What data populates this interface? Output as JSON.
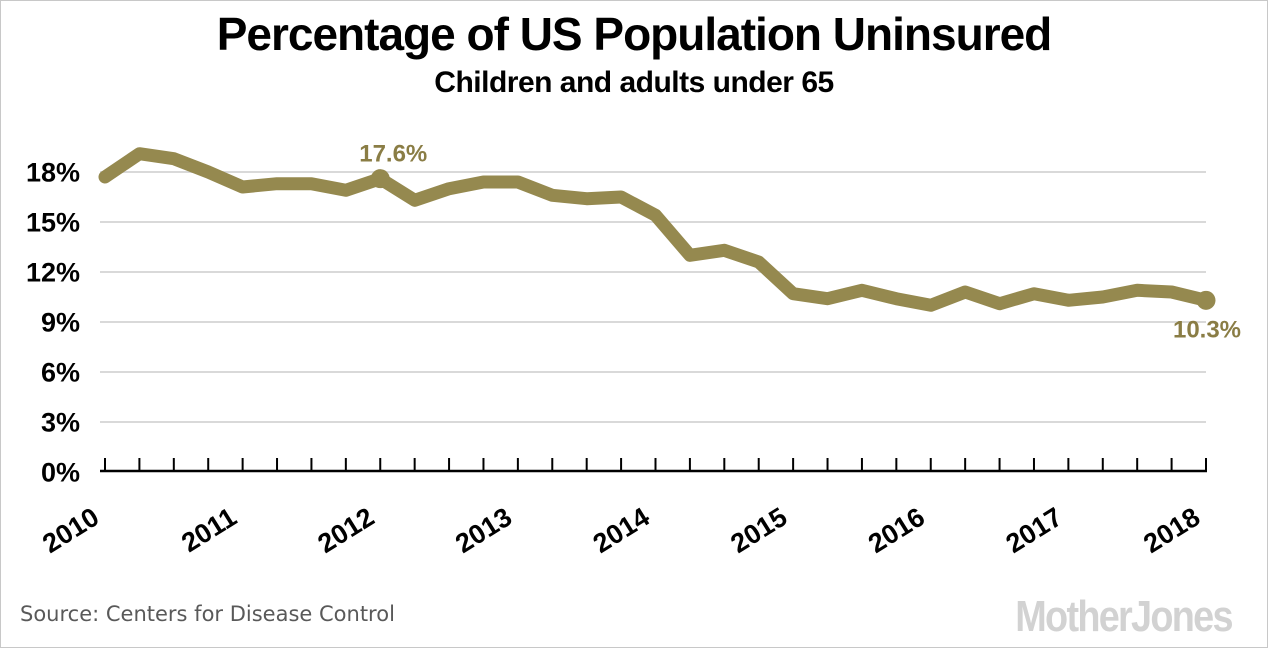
{
  "header": {
    "title": "Percentage of US Population Uninsured",
    "subtitle": "Children and adults under 65"
  },
  "footer": {
    "source_text": "Source:  Centers for Disease Control",
    "logo_text": "MotherJones"
  },
  "colors": {
    "line": "#95894F",
    "marker": "#95894F",
    "annotation": "#8A7D45",
    "grid": "#D9D9D9",
    "axis": "#000000",
    "tick_label": "#000000",
    "source_text": "#595959",
    "logo": "#D2D2D2",
    "background": "#FFFFFF",
    "border": "#C8C8C8"
  },
  "chart_data": {
    "type": "line",
    "title": "Percentage of US Population Uninsured",
    "subtitle": "Children and adults under 65",
    "series_name": "Percent uninsured, children and adults under 65",
    "x_unit": "year, quarterly observations",
    "x": [
      2010,
      2010.25,
      2010.5,
      2010.75,
      2011,
      2011.25,
      2011.5,
      2011.75,
      2012,
      2012.25,
      2012.5,
      2012.75,
      2013,
      2013.25,
      2013.5,
      2013.75,
      2014,
      2014.25,
      2014.5,
      2014.75,
      2015,
      2015.25,
      2015.5,
      2015.75,
      2016,
      2016.25,
      2016.5,
      2016.75,
      2017,
      2017.25,
      2017.5,
      2017.75,
      2018
    ],
    "values": [
      17.7,
      19.1,
      18.8,
      18.0,
      17.1,
      17.3,
      17.3,
      16.9,
      17.6,
      16.3,
      17.0,
      17.4,
      17.4,
      16.6,
      16.4,
      16.5,
      15.4,
      13.0,
      13.3,
      12.6,
      10.7,
      10.4,
      10.9,
      10.4,
      10.0,
      10.8,
      10.1,
      10.7,
      10.3,
      10.5,
      10.9,
      10.8,
      10.3
    ],
    "xlim": [
      2010,
      2018
    ],
    "ylim": [
      0,
      20
    ],
    "xticks_major": [
      2010,
      2011,
      2012,
      2013,
      2014,
      2015,
      2016,
      2017,
      2018
    ],
    "xtick_minor_interval": 0.25,
    "yticks": [
      0,
      3,
      6,
      9,
      12,
      15,
      18
    ],
    "ytick_suffix": "%",
    "grid": "horizontal only",
    "legend": "none",
    "annotations": [
      {
        "x": 2012.0,
        "value": 17.6,
        "label": "17.6%",
        "placement": "above"
      },
      {
        "x": 2018.0,
        "value": 10.3,
        "label": "10.3%",
        "placement": "below"
      }
    ]
  }
}
